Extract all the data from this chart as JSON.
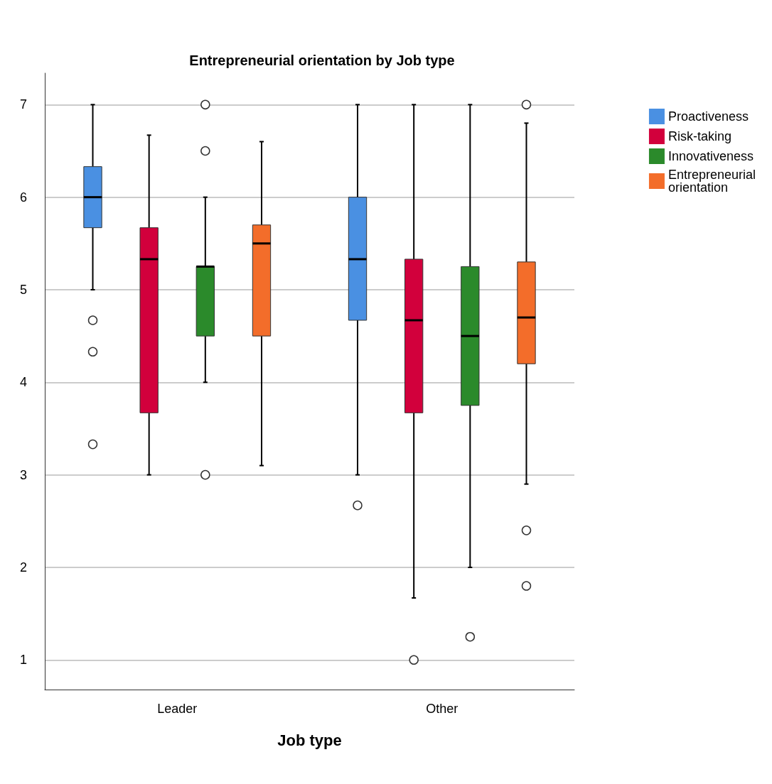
{
  "chart_data": {
    "type": "box",
    "title": "Entrepreneurial orientation by Job type",
    "xlabel": "Job type",
    "categories": [
      "Leader",
      "Other"
    ],
    "ylim": [
      0.68,
      7.34
    ],
    "yticks": [
      1,
      2,
      3,
      4,
      5,
      6,
      7
    ],
    "grid": "y",
    "legend": "top right",
    "series": [
      {
        "name": "Proactiveness",
        "color": "#4a90e2",
        "boxes": [
          {
            "low": 5.0,
            "q1": 5.67,
            "median": 6.0,
            "q3": 6.33,
            "high": 7.0,
            "outliers": [
              4.67,
              4.33,
              3.33
            ]
          },
          {
            "low": 3.0,
            "q1": 4.67,
            "median": 5.33,
            "q3": 6.0,
            "high": 7.0,
            "outliers": [
              2.67
            ]
          }
        ]
      },
      {
        "name": "Risk-taking",
        "color": "#d2003c",
        "boxes": [
          {
            "low": 3.0,
            "q1": 3.67,
            "median": 5.33,
            "q3": 5.67,
            "high": 6.67
          },
          {
            "low": 1.67,
            "q1": 3.67,
            "median": 4.67,
            "q3": 5.33,
            "high": 7.0,
            "outliers": [
              1.0
            ]
          }
        ]
      },
      {
        "name": "Innovativeness",
        "color": "#2b8a2b",
        "boxes": [
          {
            "low": 4.0,
            "q1": 4.5,
            "median": 5.25,
            "q3": 5.25,
            "high": 6.0,
            "outliers": [
              7.0,
              6.5,
              3.0
            ]
          },
          {
            "low": 2.0,
            "q1": 3.75,
            "median": 4.5,
            "q3": 5.25,
            "high": 7.0,
            "outliers": [
              1.25
            ]
          }
        ]
      },
      {
        "name": "Entrepreneurial\norientation",
        "color": "#f36d2a",
        "boxes": [
          {
            "low": 3.1,
            "q1": 4.5,
            "median": 5.5,
            "q3": 5.7,
            "high": 6.6
          },
          {
            "low": 2.9,
            "q1": 4.2,
            "median": 4.7,
            "q3": 5.3,
            "high": 6.8,
            "outliers": [
              7.0,
              2.4,
              1.8
            ]
          }
        ]
      }
    ]
  }
}
